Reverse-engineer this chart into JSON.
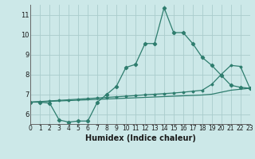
{
  "xlabel": "Humidex (Indice chaleur)",
  "background_color": "#cce8e8",
  "grid_color": "#aacccc",
  "line_color": "#2e7d6e",
  "xlim": [
    0,
    23
  ],
  "ylim": [
    5.5,
    11.5
  ],
  "xticks": [
    0,
    1,
    2,
    3,
    4,
    5,
    6,
    7,
    8,
    9,
    10,
    11,
    12,
    13,
    14,
    15,
    16,
    17,
    18,
    19,
    20,
    21,
    22,
    23
  ],
  "yticks": [
    6,
    7,
    8,
    9,
    10,
    11
  ],
  "line1": {
    "x": [
      0,
      1,
      2,
      3,
      4,
      5,
      6,
      7,
      8,
      9,
      10,
      11,
      12,
      13,
      14,
      15,
      16,
      17,
      18,
      19,
      20,
      21,
      22,
      23
    ],
    "y": [
      6.6,
      6.6,
      6.55,
      5.7,
      5.6,
      5.65,
      5.65,
      6.6,
      7.0,
      7.4,
      8.35,
      8.5,
      9.55,
      9.55,
      11.35,
      10.1,
      10.1,
      9.55,
      8.85,
      8.45,
      7.95,
      7.45,
      7.35,
      7.3
    ]
  },
  "line2": {
    "x": [
      0,
      1,
      2,
      3,
      4,
      5,
      6,
      7,
      8,
      9,
      10,
      11,
      12,
      13,
      14,
      15,
      16,
      17,
      18,
      19,
      20,
      21,
      22,
      23
    ],
    "y": [
      6.6,
      6.63,
      6.66,
      6.69,
      6.72,
      6.75,
      6.78,
      6.81,
      6.84,
      6.87,
      6.9,
      6.93,
      6.97,
      7.0,
      7.03,
      7.06,
      7.1,
      7.15,
      7.2,
      7.5,
      8.0,
      8.45,
      8.4,
      7.3
    ]
  },
  "line3": {
    "x": [
      0,
      1,
      2,
      3,
      4,
      5,
      6,
      7,
      8,
      9,
      10,
      11,
      12,
      13,
      14,
      15,
      16,
      17,
      18,
      19,
      20,
      21,
      22,
      23
    ],
    "y": [
      6.6,
      6.62,
      6.64,
      6.66,
      6.68,
      6.7,
      6.72,
      6.74,
      6.76,
      6.78,
      6.8,
      6.82,
      6.84,
      6.86,
      6.88,
      6.9,
      6.92,
      6.94,
      6.96,
      7.0,
      7.1,
      7.2,
      7.25,
      7.3
    ]
  }
}
